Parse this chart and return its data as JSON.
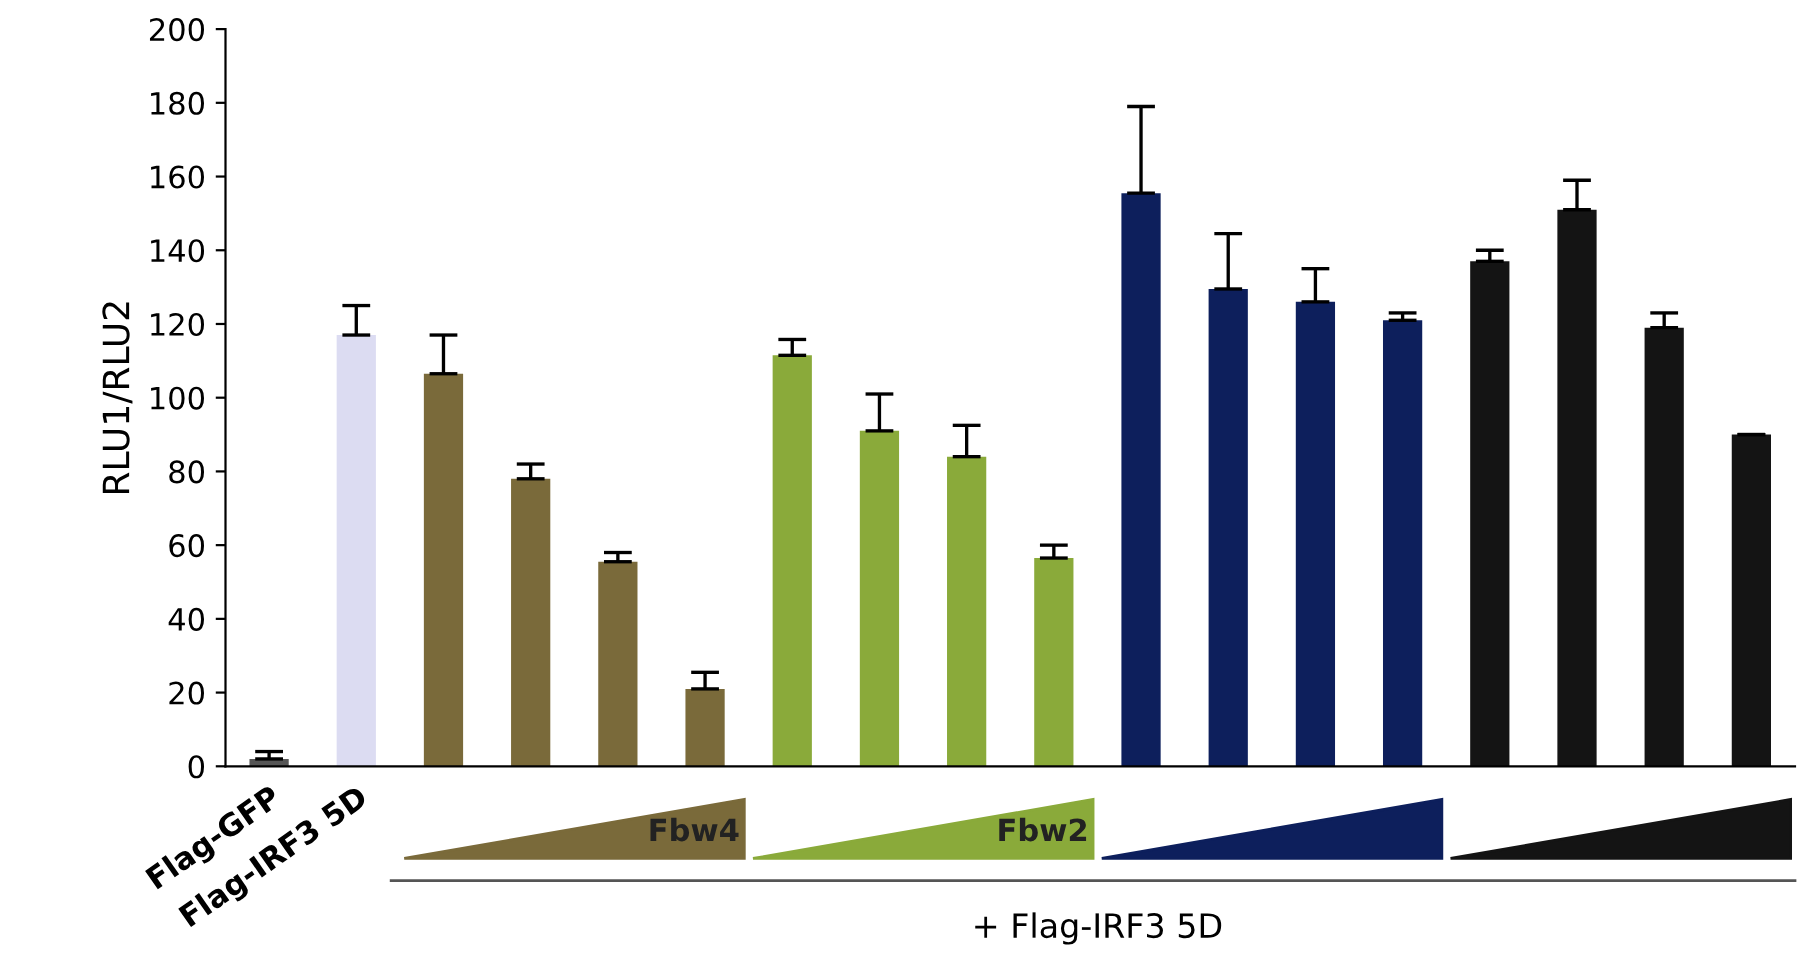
{
  "chart_data": {
    "type": "bar",
    "ylabel": "RLU1/RLU2",
    "categories": [
      "Flag-GFP",
      "Flag-IRF3 5D",
      null,
      null,
      null,
      null,
      null,
      null,
      null,
      null,
      null,
      null,
      null,
      null,
      null,
      null,
      null,
      null
    ],
    "values": [
      2,
      117,
      106.5,
      78,
      55.5,
      21,
      111.5,
      91,
      84,
      56.5,
      155.5,
      129.5,
      126,
      121,
      137,
      151,
      119,
      90
    ],
    "errors": [
      [
        2,
        4
      ],
      [
        117,
        125
      ],
      [
        106.5,
        117
      ],
      [
        78,
        82
      ],
      [
        55.5,
        58
      ],
      [
        21,
        25.5
      ],
      [
        111.5,
        115.8
      ],
      [
        91,
        101
      ],
      [
        84,
        92.5
      ],
      [
        56.5,
        60
      ],
      [
        155.5,
        179
      ],
      [
        129.5,
        144.5
      ],
      [
        126,
        135
      ],
      [
        121,
        123
      ],
      [
        137,
        140
      ],
      [
        151,
        159
      ],
      [
        119,
        123
      ],
      null
    ],
    "colors": [
      "#555555",
      "#dcdcf2",
      "#7a6a3a",
      "#7a6a3a",
      "#7a6a3a",
      "#7a6a3a",
      "#8aaa3a",
      "#8aaa3a",
      "#8aaa3a",
      "#8aaa3a",
      "#0d1f5c",
      "#0d1f5c",
      "#0d1f5c",
      "#0d1f5c",
      "#141414",
      "#141414",
      "#141414",
      "#141414"
    ],
    "ylim": [
      0,
      200
    ],
    "yticks": [
      0,
      20,
      40,
      60,
      80,
      100,
      120,
      140,
      160,
      180,
      200
    ],
    "grid": false,
    "annotations": [
      "Fbw4",
      "Fbw2",
      "+ Flag-IRF3 5D"
    ]
  }
}
